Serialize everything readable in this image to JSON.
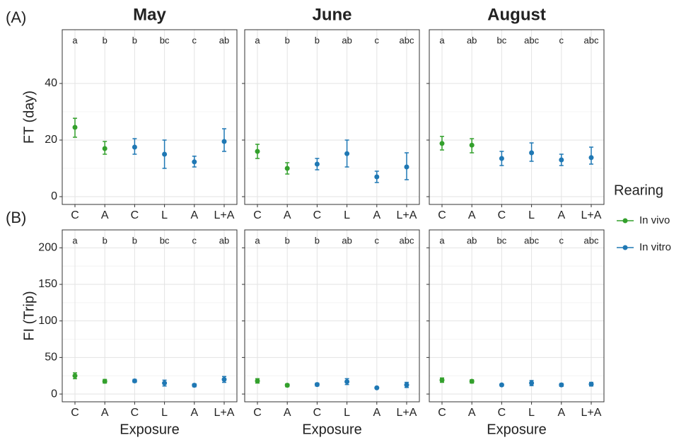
{
  "chart_data": [
    {
      "type": "pointrange",
      "title": "May",
      "panel_label": "(A)",
      "ylabel": "FT (day)",
      "categories": [
        "C",
        "A",
        "C",
        "L",
        "A",
        "L+A"
      ],
      "annotations": [
        "a",
        "b",
        "b",
        "bc",
        "c",
        "ab"
      ],
      "legend_title": "Rearing",
      "legend": "right",
      "grid": true,
      "ylim": [
        -2.75,
        59
      ],
      "yticks": [
        0,
        20,
        40
      ],
      "series": [
        {
          "name": "In vivo",
          "color": "#33a02c",
          "values": [
            24.5,
            17,
            null,
            null,
            null,
            null
          ],
          "lower": [
            21,
            15,
            null,
            null,
            null,
            null
          ],
          "upper": [
            27.7,
            19.5,
            null,
            null,
            null,
            null
          ]
        },
        {
          "name": "In vitro",
          "color": "#1f78b4",
          "values": [
            null,
            null,
            17.5,
            15,
            12.3,
            19.5
          ],
          "lower": [
            null,
            null,
            15,
            10,
            10.5,
            16
          ],
          "upper": [
            null,
            null,
            20.5,
            20,
            14.3,
            24
          ]
        }
      ]
    },
    {
      "type": "pointrange",
      "title": "June",
      "categories": [
        "C",
        "A",
        "C",
        "L",
        "A",
        "L+A"
      ],
      "annotations": [
        "a",
        "b",
        "b",
        "ab",
        "c",
        "abc"
      ],
      "grid": true,
      "ylim": [
        -2.75,
        59
      ],
      "yticks": [
        0,
        20,
        40
      ],
      "series": [
        {
          "name": "In vivo",
          "color": "#33a02c",
          "values": [
            16,
            10,
            null,
            null,
            null,
            null
          ],
          "lower": [
            13.5,
            8,
            null,
            null,
            null,
            null
          ],
          "upper": [
            18.5,
            12,
            null,
            null,
            null,
            null
          ]
        },
        {
          "name": "In vitro",
          "color": "#1f78b4",
          "values": [
            null,
            null,
            11.5,
            15.2,
            7,
            10.5
          ],
          "lower": [
            null,
            null,
            9.5,
            10.5,
            5,
            6
          ],
          "upper": [
            null,
            null,
            13.5,
            20,
            9,
            15.5
          ]
        }
      ]
    },
    {
      "type": "pointrange",
      "title": "August",
      "categories": [
        "C",
        "A",
        "C",
        "L",
        "A",
        "L+A"
      ],
      "annotations": [
        "a",
        "ab",
        "bc",
        "abc",
        "c",
        "abc"
      ],
      "grid": true,
      "ylim": [
        -2.75,
        59
      ],
      "yticks": [
        0,
        20,
        40
      ],
      "series": [
        {
          "name": "In vivo",
          "color": "#33a02c",
          "values": [
            18.8,
            18.2,
            null,
            null,
            null,
            null
          ],
          "lower": [
            16.5,
            15.5,
            null,
            null,
            null,
            null
          ],
          "upper": [
            21.3,
            20.5,
            null,
            null,
            null,
            null
          ]
        },
        {
          "name": "In vitro",
          "color": "#1f78b4",
          "values": [
            null,
            null,
            13.5,
            15.5,
            13,
            13.8
          ],
          "lower": [
            null,
            null,
            11,
            12.5,
            11,
            11.5
          ],
          "upper": [
            null,
            null,
            16,
            19,
            15,
            17.5
          ]
        }
      ]
    },
    {
      "type": "pointrange",
      "panel_label": "(B)",
      "ylabel": "FI (Trip)",
      "xlabel": "Exposure",
      "categories": [
        "C",
        "A",
        "C",
        "L",
        "A",
        "L+A"
      ],
      "annotations": [
        "a",
        "b",
        "b",
        "bc",
        "c",
        "ab"
      ],
      "grid": true,
      "ylim": [
        -10.6,
        224.5
      ],
      "yticks": [
        0,
        50,
        100,
        150,
        200
      ],
      "series": [
        {
          "name": "In vivo",
          "color": "#33a02c",
          "values": [
            25,
            17.5,
            null,
            null,
            null,
            null
          ],
          "lower": [
            21,
            15,
            null,
            null,
            null,
            null
          ],
          "upper": [
            29,
            20,
            null,
            null,
            null,
            null
          ]
        },
        {
          "name": "In vitro",
          "color": "#1f78b4",
          "values": [
            null,
            null,
            18,
            15,
            12,
            20
          ],
          "lower": [
            null,
            null,
            16,
            11,
            10,
            16
          ],
          "upper": [
            null,
            null,
            20,
            19,
            14,
            24
          ]
        }
      ]
    },
    {
      "type": "pointrange",
      "xlabel": "Exposure",
      "categories": [
        "C",
        "A",
        "C",
        "L",
        "A",
        "L+A"
      ],
      "annotations": [
        "a",
        "b",
        "b",
        "ab",
        "c",
        "abc"
      ],
      "grid": true,
      "ylim": [
        -10.6,
        224.5
      ],
      "yticks": [
        0,
        50,
        100,
        150,
        200
      ],
      "series": [
        {
          "name": "In vivo",
          "color": "#33a02c",
          "values": [
            18,
            12,
            null,
            null,
            null,
            null
          ],
          "lower": [
            15,
            10,
            null,
            null,
            null,
            null
          ],
          "upper": [
            21,
            14,
            null,
            null,
            null,
            null
          ]
        },
        {
          "name": "In vitro",
          "color": "#1f78b4",
          "values": [
            null,
            null,
            13,
            17,
            8.5,
            12.5
          ],
          "lower": [
            null,
            null,
            11,
            13,
            7.5,
            9
          ],
          "upper": [
            null,
            null,
            15,
            21,
            9.5,
            16
          ]
        }
      ]
    },
    {
      "type": "pointrange",
      "xlabel": "Exposure",
      "categories": [
        "C",
        "A",
        "C",
        "L",
        "A",
        "L+A"
      ],
      "annotations": [
        "a",
        "ab",
        "bc",
        "abc",
        "c",
        "abc"
      ],
      "grid": true,
      "ylim": [
        -10.6,
        224.5
      ],
      "yticks": [
        0,
        50,
        100,
        150,
        200
      ],
      "series": [
        {
          "name": "In vivo",
          "color": "#33a02c",
          "values": [
            19,
            17.5,
            null,
            null,
            null,
            null
          ],
          "lower": [
            16,
            15,
            null,
            null,
            null,
            null
          ],
          "upper": [
            22,
            19.5,
            null,
            null,
            null,
            null
          ]
        },
        {
          "name": "In vitro",
          "color": "#1f78b4",
          "values": [
            null,
            null,
            12.5,
            15,
            12.5,
            13.5
          ],
          "lower": [
            null,
            null,
            11,
            11.5,
            10.5,
            11
          ],
          "upper": [
            null,
            null,
            14,
            18.5,
            14.5,
            16
          ]
        }
      ]
    }
  ]
}
